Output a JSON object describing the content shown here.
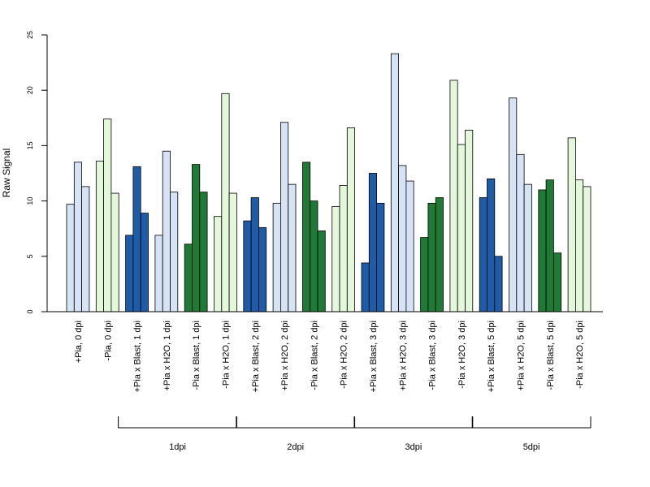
{
  "chart_data": {
    "type": "bar",
    "ylabel": "Raw Signal",
    "ylim": [
      0,
      25
    ],
    "yticks": [
      0,
      5,
      10,
      15,
      20,
      25
    ],
    "categories": [
      "+Pia, 0 dpi",
      "-Pia, 0 dpi",
      "+Pia x Blast, 1 dpi",
      "+Pia x H2O, 1 dpi",
      "-Pia x Blast, 1 dpi",
      "-Pia x H2O, 1 dpi",
      "+Pia x Blast, 2 dpi",
      "+Pia x H2O, 2 dpi",
      "-Pia x Blast, 2 dpi",
      "-Pia x H2O, 2 dpi",
      "+Pia x Blast, 3 dpi",
      "+Pia x H2O, 3 dpi",
      "-Pia x Blast, 3 dpi",
      "-Pia x H2O, 3 dpi",
      "+Pia x Blast, 5 dpi",
      "+Pia x H2O, 5 dpi",
      "-Pia x Blast, 5 dpi",
      "-Pia x H2O, 5 dpi"
    ],
    "replicates": [
      [
        9.7,
        13.5,
        11.3
      ],
      [
        13.6,
        17.4,
        10.7
      ],
      [
        6.9,
        13.1,
        8.9
      ],
      [
        6.9,
        14.5,
        10.8
      ],
      [
        6.1,
        13.3,
        10.8
      ],
      [
        8.6,
        19.7,
        10.7
      ],
      [
        8.2,
        10.3,
        7.6
      ],
      [
        9.8,
        17.1,
        11.5
      ],
      [
        13.5,
        10.0,
        7.3
      ],
      [
        9.5,
        11.4,
        16.6
      ],
      [
        4.4,
        12.5,
        9.8
      ],
      [
        23.3,
        13.2,
        11.8
      ],
      [
        6.7,
        9.8,
        10.3
      ],
      [
        20.9,
        15.1,
        16.4
      ],
      [
        10.3,
        12.0,
        5.0
      ],
      [
        19.3,
        14.2,
        11.5
      ],
      [
        11.0,
        11.9,
        5.3
      ],
      [
        15.7,
        11.9,
        11.3
      ]
    ],
    "bar_colors": [
      "#d5e3f5",
      "#e3f7da",
      "#1f5ca8",
      "#d5e3f5",
      "#1e7a34",
      "#e3f7da",
      "#1f5ca8",
      "#d5e3f5",
      "#1e7a34",
      "#e3f7da",
      "#1f5ca8",
      "#d5e3f5",
      "#1e7a34",
      "#e3f7da",
      "#1f5ca8",
      "#d5e3f5",
      "#1e7a34",
      "#e3f7da"
    ],
    "groups": [
      {
        "label": "1dpi",
        "first_category": 2,
        "last_category": 5
      },
      {
        "label": "2dpi",
        "first_category": 6,
        "last_category": 9
      },
      {
        "label": "3dpi",
        "first_category": 10,
        "last_category": 13
      },
      {
        "label": "5dpi",
        "first_category": 14,
        "last_category": 17
      }
    ],
    "grid": false,
    "legend": "none"
  }
}
